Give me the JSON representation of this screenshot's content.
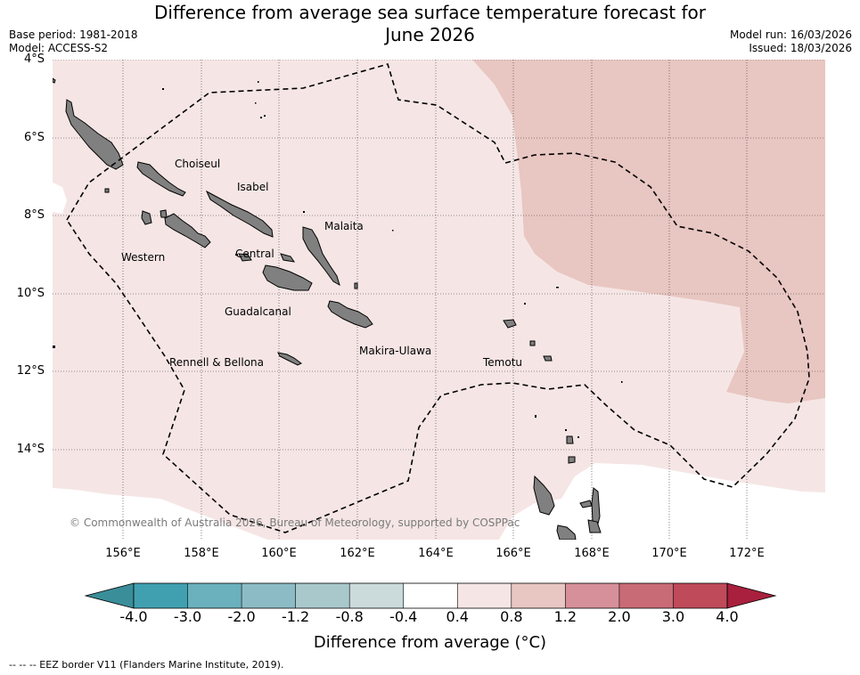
{
  "title": {
    "line1": "Difference from average sea surface temperature forecast for",
    "line2": "June 2026"
  },
  "meta_left": {
    "base_period": "Base period: 1981-2018",
    "model": "Model: ACCESS-S2"
  },
  "meta_right": {
    "model_run": "Model run: 16/03/2026",
    "issued": "Issued: 18/03/2026"
  },
  "axes": {
    "y_ticks": [
      "4°S",
      "6°S",
      "8°S",
      "10°S",
      "12°S",
      "14°S"
    ],
    "x_ticks": [
      "156°E",
      "158°E",
      "160°E",
      "162°E",
      "164°E",
      "166°E",
      "168°E",
      "170°E",
      "172°E"
    ]
  },
  "regions": {
    "choiseul": "Choiseul",
    "isabel": "Isabel",
    "malaita": "Malaita",
    "western": "Western",
    "central": "Central",
    "guadalcanal": "Guadalcanal",
    "makira": "Makira-Ulawa",
    "rennell": "Rennell & Bellona",
    "temotu": "Temotu"
  },
  "copyright": "© Commonwealth of Australia 2026, Bureau of Meteorology, supported by COSPPac",
  "colorbar": {
    "labels": [
      "-4.0",
      "-3.0",
      "-2.0",
      "-1.2",
      "-0.8",
      "-0.4",
      "0.4",
      "0.8",
      "1.2",
      "2.0",
      "3.0",
      "4.0"
    ],
    "colors": [
      "#41a0b0",
      "#6ab0bd",
      "#8cbbc5",
      "#a9c8cc",
      "#cbdadb",
      "#ffffff",
      "#f5e6e5",
      "#e8c6c1",
      "#d6909a",
      "#c96b77",
      "#bf4a5a"
    ],
    "extend_low_color": "#3a8e99",
    "extend_high_color": "#a8203d",
    "title": "Difference from average (°C)"
  },
  "footnote": "--  --  -- EEZ border V11 (Flanders Marine Institute, 2019).",
  "colors": {
    "band_04_08": "#f5e6e5",
    "band_08_12": "#e8c6c1",
    "land": "#808080"
  }
}
